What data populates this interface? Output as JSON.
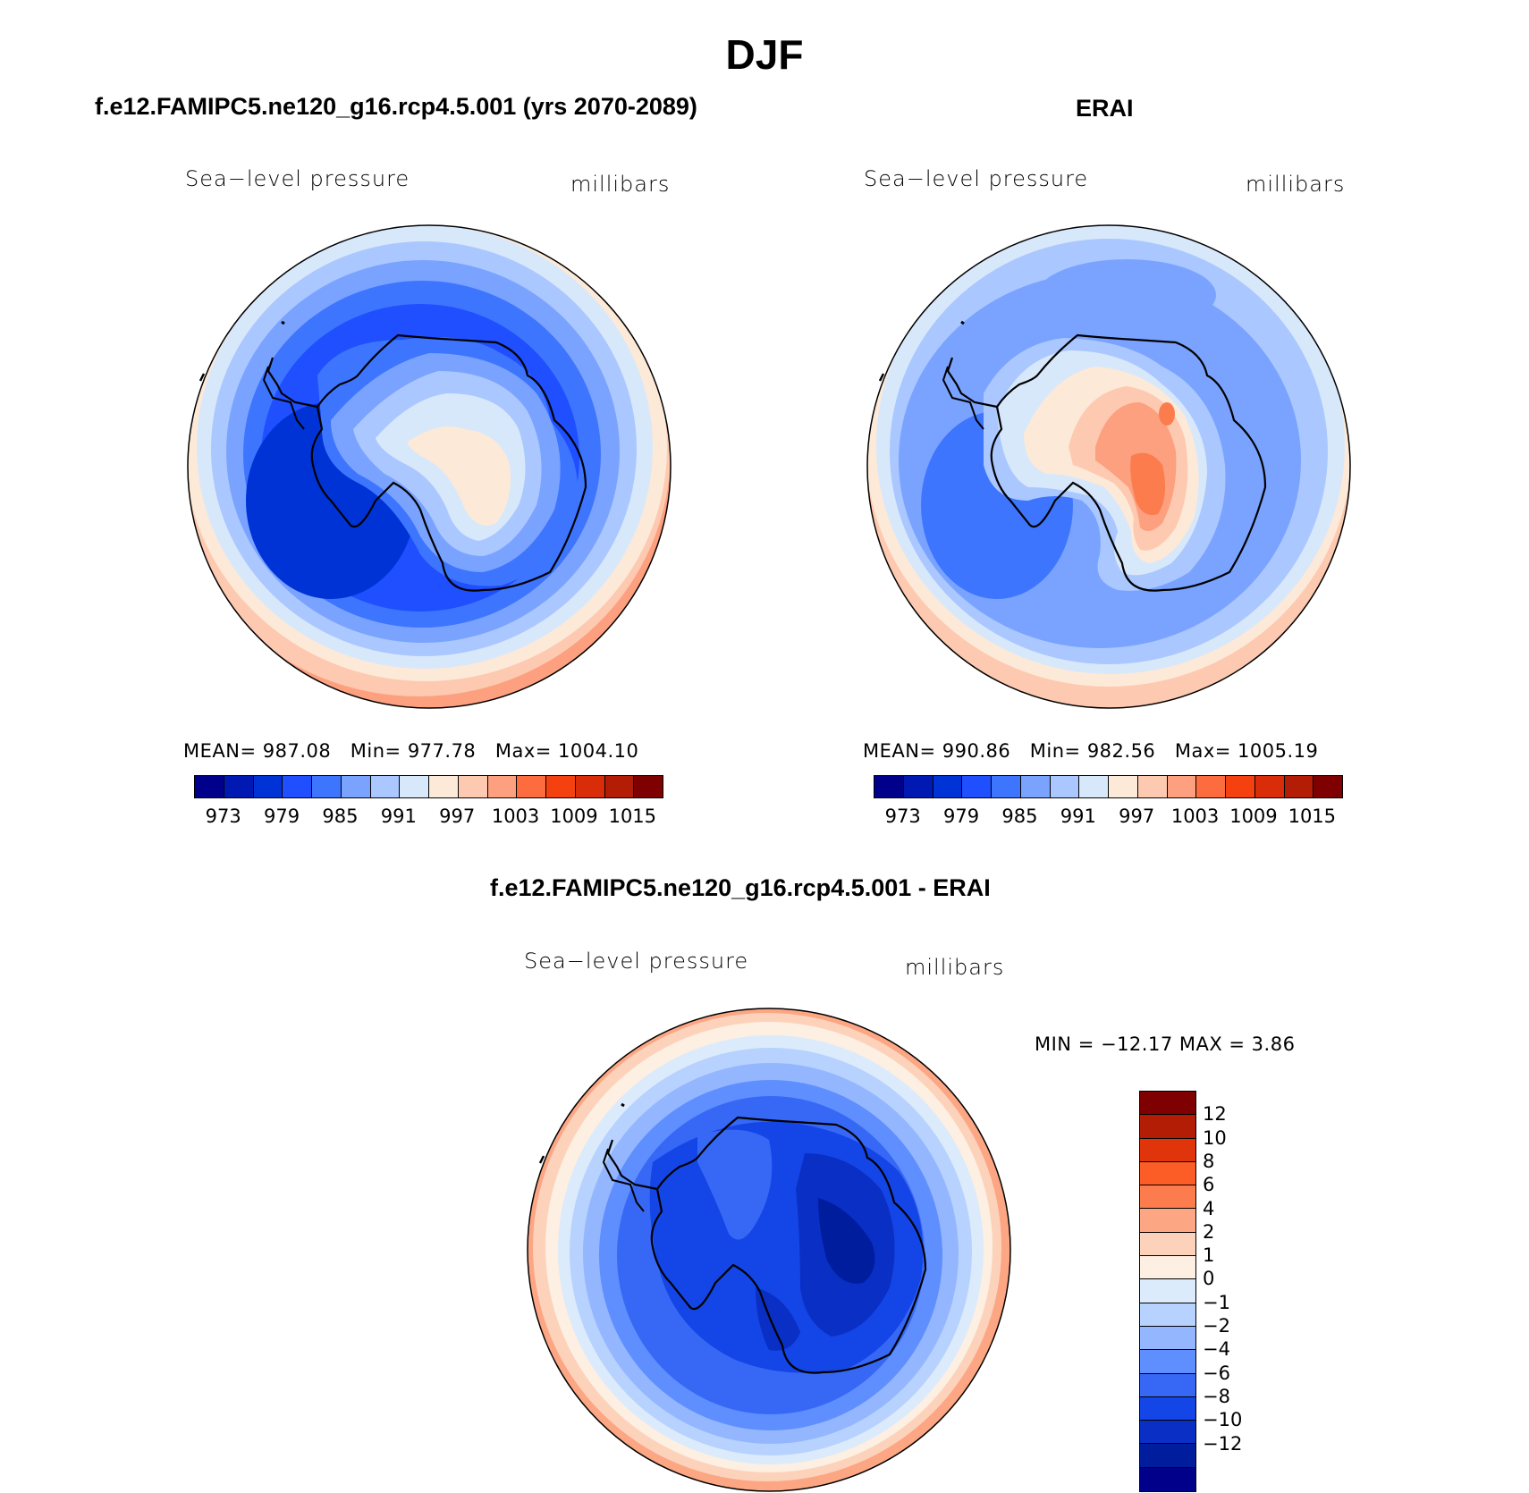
{
  "figure": {
    "title": "DJF"
  },
  "panels": {
    "model": {
      "case_title": "f.e12.FAMIPC5.ne120_g16.rcp4.5.001 (yrs 2070-2089)",
      "variable": "Sea−level pressure",
      "units": "millibars",
      "stats": {
        "mean_label": "MEAN=",
        "mean": "987.08",
        "min_label": "Min=",
        "min": "977.78",
        "max_label": "Max=",
        "max": "1004.10"
      }
    },
    "obs": {
      "case_title": "ERAI",
      "variable": "Sea−level pressure",
      "units": "millibars",
      "stats": {
        "mean_label": "MEAN=",
        "mean": "990.86",
        "min_label": "Min=",
        "min": "982.56",
        "max_label": "Max=",
        "max": "1005.19"
      }
    },
    "diff": {
      "case_title": "f.e12.FAMIPC5.ne120_g16.rcp4.5.001 - ERAI",
      "variable": "Sea−level pressure",
      "units": "millibars",
      "stats_text": "MIN = −12.17 MAX =    3.86"
    }
  },
  "abs_colorbar": {
    "colors": [
      "#00008b",
      "#0019b3",
      "#0033d6",
      "#1f4fff",
      "#3d75ff",
      "#7aa3ff",
      "#aac7ff",
      "#d8e8fb",
      "#fde9d7",
      "#fdc9b0",
      "#fca07f",
      "#fc6c3f",
      "#f5410f",
      "#d92d0a",
      "#b31c05",
      "#7f0000"
    ],
    "tick_labels": [
      "973",
      "979",
      "985",
      "991",
      "997",
      "1003",
      "1009",
      "1015"
    ]
  },
  "diff_colorbar": {
    "colors": [
      "#7f0000",
      "#b31c05",
      "#e0340b",
      "#fc5d27",
      "#fc7c4d",
      "#fca684",
      "#fdd2bb",
      "#fdefe2",
      "#dcebfb",
      "#b7d2fe",
      "#93b6ff",
      "#5f8eff",
      "#3768f5",
      "#1445e6",
      "#0a2fc4",
      "#001d9e",
      "#00008b"
    ],
    "labels": [
      "12",
      "10",
      "8",
      "6",
      "4",
      "2",
      "1",
      "0",
      "−1",
      "−2",
      "−4",
      "−6",
      "−8",
      "−10",
      "−12"
    ]
  }
}
